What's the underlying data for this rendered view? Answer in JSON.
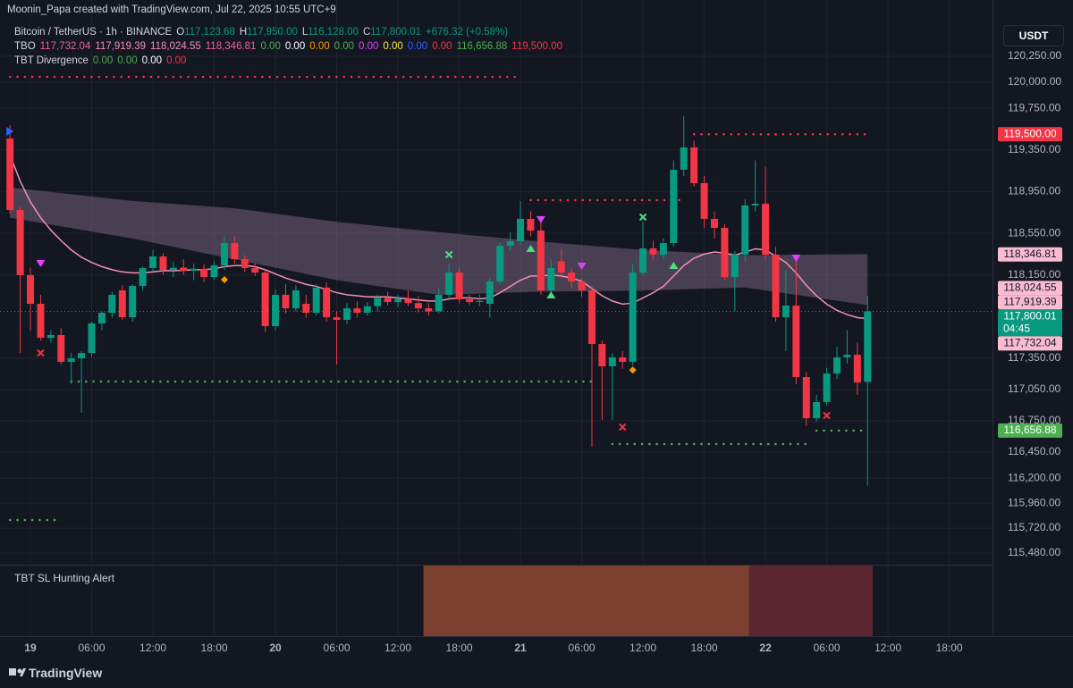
{
  "header": {
    "attribution": "Moonin_Papa created with TradingView.com, Jul 22, 2025 10:55 UTC+9",
    "currency": "USDT",
    "footer": "TradingView",
    "legend_rows": [
      {
        "title": "Bitcoin / TetherUS · 1h · BINANCE",
        "items": [
          {
            "text": "O",
            "color": "#d1d4dc"
          },
          {
            "text": "117,123.68",
            "color": "#089981"
          },
          {
            "text": "H",
            "color": "#d1d4dc"
          },
          {
            "text": "117,950.00",
            "color": "#089981"
          },
          {
            "text": "L",
            "color": "#d1d4dc"
          },
          {
            "text": "116,128.00",
            "color": "#089981"
          },
          {
            "text": "C",
            "color": "#d1d4dc"
          },
          {
            "text": "117,800.01",
            "color": "#089981"
          },
          {
            "text": "+676.32 (+0.58%)",
            "color": "#089981"
          }
        ]
      },
      {
        "title": "TBO",
        "items": [
          {
            "text": "117,732.04",
            "color": "#f06292"
          },
          {
            "text": "117,919.39",
            "color": "#f48fb1"
          },
          {
            "text": "118,024.55",
            "color": "#f48fb1"
          },
          {
            "text": "118,346.81",
            "color": "#f06292"
          },
          {
            "text": "0.00",
            "color": "#4caf50"
          },
          {
            "text": "0.00",
            "color": "#ffffff"
          },
          {
            "text": "0.00",
            "color": "#ff9800"
          },
          {
            "text": "0.00",
            "color": "#4caf50"
          },
          {
            "text": "0.00",
            "color": "#e040fb"
          },
          {
            "text": "0.00",
            "color": "#ffeb3b"
          },
          {
            "text": "0.00",
            "color": "#2962ff"
          },
          {
            "text": "0.00",
            "color": "#f23645"
          },
          {
            "text": "116,656.88",
            "color": "#4caf50"
          },
          {
            "text": "119,500.00",
            "color": "#f23645"
          }
        ]
      },
      {
        "title": "TBT Divergence",
        "items": [
          {
            "text": "0.00",
            "color": "#4caf50"
          },
          {
            "text": "0.00",
            "color": "#4caf50"
          },
          {
            "text": "0.00",
            "color": "#ffffff"
          },
          {
            "text": "0.00",
            "color": "#f23645"
          }
        ]
      }
    ]
  },
  "chart_data": {
    "type": "candlestick",
    "up_color": "#089981",
    "down_color": "#f23645",
    "x": [
      -2,
      -1,
      0,
      1,
      2,
      3,
      4,
      5,
      6,
      7,
      8,
      9,
      10,
      11,
      12,
      13,
      14,
      15,
      16,
      17,
      18,
      19,
      20,
      21,
      22,
      23,
      24,
      25,
      26,
      27,
      28,
      29,
      30,
      31,
      32,
      33,
      34,
      35,
      36,
      37,
      38,
      39,
      40,
      41,
      42,
      43,
      44,
      45,
      46,
      47,
      48,
      49,
      50,
      51,
      52,
      53,
      54,
      55,
      56,
      57,
      58,
      59,
      60,
      61,
      62,
      63,
      64,
      65,
      66,
      67,
      68,
      69,
      70,
      71,
      72,
      73,
      74,
      75,
      76,
      77,
      78,
      79,
      80,
      81,
      82
    ],
    "open": [
      119460,
      118774,
      118148,
      117873,
      117547,
      117573,
      117316,
      117350,
      117401,
      117685,
      117787,
      118002,
      117744,
      118045,
      118216,
      118328,
      118199,
      118220,
      118190,
      118210,
      118130,
      118242,
      118456,
      118302,
      118216,
      118173,
      117659,
      117959,
      117830,
      117873,
      117787,
      118028,
      117744,
      117719,
      117830,
      117787,
      117850,
      117930,
      117890,
      117920,
      117880,
      117830,
      117800,
      117959,
      118173,
      117916,
      117890,
      117873,
      118088,
      118431,
      118474,
      118688,
      118576,
      118002,
      118280,
      118173,
      118088,
      118002,
      117487,
      117273,
      117359,
      117316,
      118173,
      118405,
      118345,
      118456,
      119160,
      119374,
      119031,
      118688,
      118602,
      118130,
      118345,
      118817,
      118834,
      118345,
      117744,
      117856,
      117170,
      116775,
      116930,
      117204,
      117359,
      117384,
      117123.68
    ],
    "high": [
      119588,
      118800,
      118220,
      117960,
      117620,
      117640,
      117400,
      117420,
      117700,
      117800,
      117990,
      118050,
      118060,
      118230,
      118390,
      118360,
      118280,
      118300,
      118260,
      118250,
      118280,
      118520,
      118520,
      118340,
      118260,
      118200,
      118010,
      118060,
      118050,
      117960,
      118060,
      118080,
      117800,
      117880,
      117900,
      117890,
      117960,
      117990,
      117960,
      118000,
      117950,
      117880,
      118020,
      118250,
      118220,
      117960,
      117960,
      118120,
      118460,
      118560,
      118860,
      118760,
      118700,
      118300,
      118400,
      118220,
      118120,
      118040,
      117520,
      117400,
      117420,
      118250,
      118660,
      118480,
      118500,
      119250,
      119674,
      119440,
      119100,
      118760,
      118640,
      118380,
      118880,
      119250,
      119190,
      118420,
      118200,
      118300,
      117220,
      117000,
      117260,
      117460,
      117620,
      117500,
      117950
    ],
    "low": [
      118740,
      117401,
      117616,
      117520,
      117500,
      117290,
      117101,
      116827,
      117360,
      117620,
      117740,
      117720,
      117700,
      118000,
      118180,
      118150,
      118130,
      118150,
      118100,
      118080,
      118100,
      118200,
      118260,
      118180,
      118140,
      117600,
      117620,
      117780,
      117800,
      117740,
      117760,
      117700,
      117290,
      117680,
      117740,
      117760,
      117800,
      117860,
      117840,
      117850,
      117790,
      117760,
      117780,
      117930,
      117880,
      117860,
      117850,
      117740,
      118060,
      118380,
      118440,
      118520,
      117960,
      117960,
      118120,
      118020,
      117940,
      116501,
      116758,
      116760,
      117250,
      117280,
      118140,
      118300,
      118300,
      118420,
      119100,
      119000,
      118600,
      118500,
      118100,
      117800,
      118280,
      118760,
      118300,
      117700,
      117420,
      117101,
      116700,
      116740,
      116900,
      117150,
      117300,
      117000,
      116128
    ],
    "close": [
      118774,
      118148,
      117873,
      117547,
      117573,
      117316,
      117350,
      117401,
      117685,
      117787,
      117959,
      117744,
      118045,
      118216,
      118328,
      118199,
      118220,
      118190,
      118210,
      118130,
      118242,
      118456,
      118302,
      118216,
      118173,
      117659,
      117959,
      117830,
      118002,
      117787,
      118028,
      117744,
      117719,
      117830,
      117787,
      117850,
      117930,
      117890,
      117920,
      117880,
      117830,
      117800,
      117959,
      118173,
      117916,
      117890,
      117900,
      118088,
      118431,
      118474,
      118688,
      118576,
      118002,
      118216,
      118173,
      118088,
      118002,
      117487,
      117273,
      117359,
      117316,
      118173,
      118405,
      118345,
      118456,
      119160,
      119374,
      119031,
      118688,
      118602,
      118130,
      118345,
      118817,
      118834,
      118345,
      117744,
      117856,
      117170,
      116775,
      116930,
      117204,
      117359,
      117384,
      117118,
      117800.01
    ],
    "ma_line": {
      "color": "#f48fb1",
      "values": [
        119300,
        119050,
        118850,
        118700,
        118580,
        118480,
        118390,
        118320,
        118270,
        118230,
        118200,
        118180,
        118170,
        118170,
        118180,
        118190,
        118190,
        118195,
        118200,
        118200,
        118210,
        118230,
        118240,
        118240,
        118230,
        118200,
        118160,
        118120,
        118090,
        118060,
        118040,
        118010,
        117980,
        117960,
        117950,
        117940,
        117940,
        117940,
        117930,
        117920,
        117910,
        117900,
        117900,
        117920,
        117930,
        117930,
        117920,
        117930,
        117980,
        118040,
        118100,
        118140,
        118140,
        118150,
        118140,
        118120,
        118090,
        118020,
        117950,
        117900,
        117870,
        117880,
        117930,
        117980,
        118040,
        118140,
        118240,
        118310,
        118350,
        118370,
        118360,
        118340,
        118370,
        118400,
        118390,
        118330,
        118270,
        118170,
        118050,
        117950,
        117870,
        117810,
        117770,
        117740,
        117732.04
      ]
    },
    "cloud": {
      "color": "#9c7e9c",
      "x": [
        -2,
        10,
        20,
        30,
        40,
        50,
        60,
        70,
        82
      ],
      "upper": [
        118990,
        118860,
        118790,
        118660,
        118560,
        118470,
        118390,
        118340,
        118350
      ],
      "lower": [
        118700,
        118500,
        118300,
        118100,
        117960,
        117990,
        118000,
        118030,
        117860
      ]
    },
    "levels": [
      {
        "value": 120051,
        "from": -2,
        "to": 48,
        "color": "#f23645"
      },
      {
        "value": 117127,
        "from": 4,
        "to": 55,
        "color": "#4caf50"
      },
      {
        "value": 115798,
        "from": -2,
        "to": 3,
        "color": "#4caf50"
      },
      {
        "value": 118868,
        "from": 49,
        "to": 64,
        "color": "#f23645"
      },
      {
        "value": 119500,
        "from": 65,
        "to": 82,
        "color": "#f23645"
      },
      {
        "value": 116527,
        "from": 57,
        "to": 76,
        "color": "#4caf50"
      },
      {
        "value": 116656.88,
        "from": 77,
        "to": 82,
        "color": "#4caf50"
      }
    ],
    "signals": [
      {
        "x": -2,
        "value": 119528,
        "shape": "triangle-right",
        "color": "#2962ff"
      },
      {
        "x": 1,
        "value": 118259,
        "shape": "triangle-down",
        "color": "#e040fb"
      },
      {
        "x": 1,
        "value": 117401,
        "shape": "x",
        "color": "#f23645"
      },
      {
        "x": 19,
        "value": 118105,
        "shape": "diamond",
        "color": "#ff9800"
      },
      {
        "x": 41,
        "value": 118345,
        "shape": "x",
        "color": "#4ade80"
      },
      {
        "x": 49,
        "value": 118405,
        "shape": "triangle-up",
        "color": "#4ade80"
      },
      {
        "x": 50,
        "value": 118680,
        "shape": "triangle-down",
        "color": "#e040fb"
      },
      {
        "x": 51,
        "value": 117959,
        "shape": "triangle-up",
        "color": "#4ade80"
      },
      {
        "x": 54,
        "value": 118233,
        "shape": "triangle-down",
        "color": "#e040fb"
      },
      {
        "x": 58,
        "value": 116690,
        "shape": "x",
        "color": "#f23645"
      },
      {
        "x": 59,
        "value": 117238,
        "shape": "diamond",
        "color": "#ff9800"
      },
      {
        "x": 60,
        "value": 118705,
        "shape": "x",
        "color": "#4ade80"
      },
      {
        "x": 63,
        "value": 118242,
        "shape": "triangle-up",
        "color": "#4ade80"
      },
      {
        "x": 75,
        "value": 118311,
        "shape": "triangle-down",
        "color": "#e040fb"
      },
      {
        "x": 78,
        "value": 116801,
        "shape": "x",
        "color": "#f23645"
      }
    ],
    "price_tags": [
      {
        "value": 119500,
        "label": "119,500.00",
        "color": "#f23645",
        "text_color": "#ffffff"
      },
      {
        "value": 118346.81,
        "label": "118,346.81",
        "color": "#f8bbd0",
        "text_color": "#131722"
      },
      {
        "value": 118024.55,
        "label": "118,024.55",
        "color": "#f8bbd0",
        "text_color": "#131722"
      },
      {
        "value": 117919.39,
        "label": "117,919.39",
        "color": "#f8bbd0",
        "text_color": "#131722"
      },
      {
        "value": 117800.01,
        "label": "117,800.01",
        "countdown": "04:45",
        "color": "#089981",
        "text_color": "#ffffff"
      },
      {
        "value": 117732.04,
        "label": "117,732.04",
        "color": "#f8bbd0",
        "text_color": "#131722"
      },
      {
        "value": 116656.88,
        "label": "116,656.88",
        "color": "#4caf50",
        "text_color": "#ffffff"
      }
    ],
    "xlim": [
      -2.98,
      94.24
    ],
    "xticks": [
      {
        "value": 0,
        "label": "19"
      },
      {
        "value": 6,
        "label": "06:00"
      },
      {
        "value": 12,
        "label": "12:00"
      },
      {
        "value": 18,
        "label": "18:00"
      },
      {
        "value": 24,
        "label": "20"
      },
      {
        "value": 30,
        "label": "06:00"
      },
      {
        "value": 36,
        "label": "12:00"
      },
      {
        "value": 42,
        "label": "18:00"
      },
      {
        "value": 48,
        "label": "21"
      },
      {
        "value": 54,
        "label": "06:00"
      },
      {
        "value": 60,
        "label": "12:00"
      },
      {
        "value": 66,
        "label": "18:00"
      },
      {
        "value": 72,
        "label": "22"
      },
      {
        "value": 78,
        "label": "06:00"
      },
      {
        "value": 84,
        "label": "12:00"
      },
      {
        "value": 90,
        "label": "18:00"
      }
    ],
    "ylim": [
      115369,
      120789
    ],
    "yticks": [
      {
        "value": 120250,
        "label": "120,250.00"
      },
      {
        "value": 120000,
        "label": "120,000.00"
      },
      {
        "value": 119750,
        "label": "119,750.00"
      },
      {
        "value": 119350,
        "label": "119,350.00"
      },
      {
        "value": 118950,
        "label": "118,950.00"
      },
      {
        "value": 118550,
        "label": "118,550.00"
      },
      {
        "value": 118150,
        "label": "118,150.00"
      },
      {
        "value": 117350,
        "label": "117,350.00"
      },
      {
        "value": 117050,
        "label": "117,050.00"
      },
      {
        "value": 116750,
        "label": "116,750.00"
      },
      {
        "value": 116450,
        "label": "116,450.00"
      },
      {
        "value": 116200,
        "label": "116,200.00"
      },
      {
        "value": 115960,
        "label": "115,960.00"
      },
      {
        "value": 115720,
        "label": "115,720.00"
      },
      {
        "value": 115480,
        "label": "115,480.00"
      }
    ],
    "grid": true,
    "panel_title": "TBT SL Hunting Alert",
    "alert_zones": [
      {
        "from": 38.5,
        "to": 70.4,
        "color": "#7b4030"
      },
      {
        "from": 70.4,
        "to": 82.5,
        "color": "#5c2630"
      }
    ]
  }
}
